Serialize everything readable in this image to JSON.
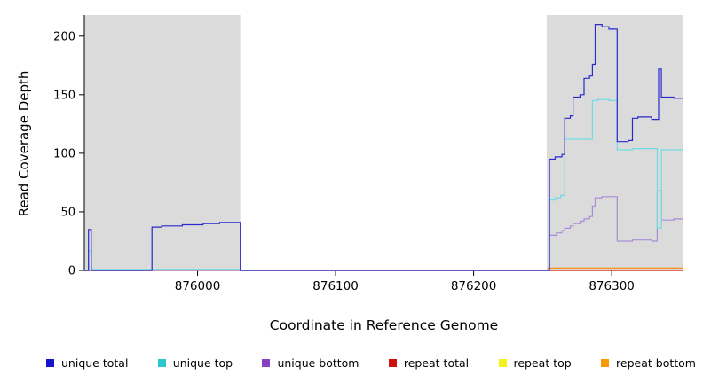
{
  "chart_data": {
    "type": "line",
    "title": "",
    "xlabel": "Coordinate in Reference Genome",
    "ylabel": "Read Coverage Depth",
    "xlim": [
      875918,
      876352
    ],
    "ylim": [
      0,
      218
    ],
    "x_ticks": [
      876000,
      876100,
      876200,
      876300
    ],
    "y_ticks": [
      0,
      50,
      100,
      150,
      200
    ],
    "grid": false,
    "legend_position": "bottom",
    "colors": {
      "background": "#FFFFFF",
      "shaded_band": "#DBDBDB",
      "axis": "#000000"
    },
    "shaded_regions": [
      {
        "from": 875918,
        "to": 876031
      },
      {
        "from": 876253,
        "to": 876352
      }
    ],
    "series": [
      {
        "id": "unique-total",
        "label": "unique total",
        "legend_color": "#1414CC",
        "line_color": "#2929CC",
        "points": [
          [
            875918,
            0
          ],
          [
            875921,
            0
          ],
          [
            875921,
            35
          ],
          [
            875923,
            35
          ],
          [
            875923,
            0
          ],
          [
            875967,
            0
          ],
          [
            875967,
            37
          ],
          [
            875974,
            37
          ],
          [
            875974,
            38
          ],
          [
            875989,
            38
          ],
          [
            875989,
            39
          ],
          [
            876004,
            39
          ],
          [
            876004,
            40
          ],
          [
            876016,
            40
          ],
          [
            876016,
            41
          ],
          [
            876031,
            41
          ],
          [
            876031,
            0
          ],
          [
            876255,
            0
          ],
          [
            876255,
            95
          ],
          [
            876259,
            95
          ],
          [
            876259,
            97
          ],
          [
            876264,
            97
          ],
          [
            876264,
            99
          ],
          [
            876266,
            99
          ],
          [
            876266,
            130
          ],
          [
            876270,
            130
          ],
          [
            876270,
            132
          ],
          [
            876272,
            132
          ],
          [
            876272,
            148
          ],
          [
            876277,
            148
          ],
          [
            876277,
            150
          ],
          [
            876280,
            150
          ],
          [
            876280,
            164
          ],
          [
            876284,
            164
          ],
          [
            876284,
            166
          ],
          [
            876286,
            166
          ],
          [
            876286,
            176
          ],
          [
            876288,
            176
          ],
          [
            876288,
            210
          ],
          [
            876293,
            210
          ],
          [
            876293,
            208
          ],
          [
            876298,
            208
          ],
          [
            876298,
            206
          ],
          [
            876304,
            206
          ],
          [
            876304,
            110
          ],
          [
            876312,
            110
          ],
          [
            876312,
            111
          ],
          [
            876315,
            111
          ],
          [
            876315,
            130
          ],
          [
            876319,
            130
          ],
          [
            876319,
            131
          ],
          [
            876329,
            131
          ],
          [
            876329,
            129
          ],
          [
            876334,
            129
          ],
          [
            876334,
            172
          ],
          [
            876336,
            172
          ],
          [
            876336,
            148
          ],
          [
            876345,
            148
          ],
          [
            876345,
            147
          ],
          [
            876352,
            147
          ]
        ]
      },
      {
        "id": "unique-top",
        "label": "unique top",
        "legend_color": "#2BC6CE",
        "line_color": "#72DCE6",
        "points": [
          [
            875918,
            0
          ],
          [
            875921,
            0
          ],
          [
            875921,
            17
          ],
          [
            875923,
            17
          ],
          [
            875923,
            1
          ],
          [
            876031,
            1
          ],
          [
            876031,
            0
          ],
          [
            876255,
            0
          ],
          [
            876255,
            60
          ],
          [
            876259,
            60
          ],
          [
            876259,
            62
          ],
          [
            876263,
            62
          ],
          [
            876263,
            64
          ],
          [
            876266,
            64
          ],
          [
            876266,
            112
          ],
          [
            876286,
            112
          ],
          [
            876286,
            145
          ],
          [
            876290,
            145
          ],
          [
            876290,
            146
          ],
          [
            876298,
            146
          ],
          [
            876298,
            145
          ],
          [
            876304,
            145
          ],
          [
            876304,
            103
          ],
          [
            876315,
            103
          ],
          [
            876315,
            104
          ],
          [
            876333,
            104
          ],
          [
            876333,
            36
          ],
          [
            876336,
            36
          ],
          [
            876336,
            103
          ],
          [
            876352,
            103
          ]
        ]
      },
      {
        "id": "unique-bottom",
        "label": "unique bottom",
        "legend_color": "#8A3FC2",
        "line_color": "#A98CD6",
        "points": [
          [
            875918,
            0
          ],
          [
            876255,
            0
          ],
          [
            876255,
            30
          ],
          [
            876260,
            30
          ],
          [
            876260,
            32
          ],
          [
            876264,
            32
          ],
          [
            876264,
            34
          ],
          [
            876266,
            34
          ],
          [
            876266,
            36
          ],
          [
            876270,
            36
          ],
          [
            876270,
            38
          ],
          [
            876272,
            38
          ],
          [
            876272,
            40
          ],
          [
            876277,
            40
          ],
          [
            876277,
            42
          ],
          [
            876280,
            42
          ],
          [
            876280,
            44
          ],
          [
            876284,
            44
          ],
          [
            876284,
            46
          ],
          [
            876286,
            46
          ],
          [
            876286,
            55
          ],
          [
            876288,
            55
          ],
          [
            876288,
            62
          ],
          [
            876293,
            62
          ],
          [
            876293,
            63
          ],
          [
            876304,
            63
          ],
          [
            876304,
            25
          ],
          [
            876315,
            25
          ],
          [
            876315,
            26
          ],
          [
            876329,
            26
          ],
          [
            876329,
            25
          ],
          [
            876333,
            25
          ],
          [
            876333,
            68
          ],
          [
            876336,
            68
          ],
          [
            876336,
            43
          ],
          [
            876345,
            43
          ],
          [
            876345,
            44
          ],
          [
            876352,
            44
          ]
        ]
      },
      {
        "id": "repeat-total",
        "label": "repeat total",
        "legend_color": "#CC1111",
        "line_color": "#CC1111",
        "points": [
          [
            875918,
            0
          ],
          [
            876352,
            0
          ]
        ]
      },
      {
        "id": "repeat-top",
        "label": "repeat top",
        "legend_color": "#F2F21A",
        "line_color": "#E8E82A",
        "points": [
          [
            875918,
            0
          ],
          [
            876352,
            0
          ]
        ]
      },
      {
        "id": "repeat-bottom",
        "label": "repeat bottom",
        "legend_color": "#F59B00",
        "line_color": "#FF8C1A",
        "points": [
          [
            875918,
            0
          ],
          [
            876254,
            0
          ],
          [
            876254,
            2
          ],
          [
            876352,
            2
          ]
        ]
      }
    ]
  }
}
